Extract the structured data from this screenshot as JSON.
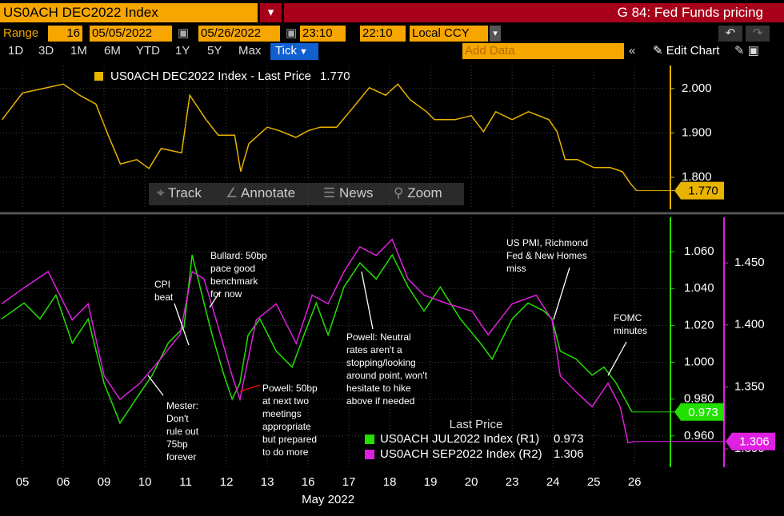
{
  "header": {
    "ticker": "US0ACH DEC2022 Index",
    "function": "G 84: Fed Funds pricing"
  },
  "controls": {
    "range_label": "Range",
    "range_value": "16",
    "start_date": "05/05/2022",
    "end_date": "05/26/2022",
    "start_time": "23:10",
    "end_time": "22:10",
    "currency": "Local CCY"
  },
  "periods": [
    "1D",
    "3D",
    "1M",
    "6M",
    "YTD",
    "1Y",
    "5Y",
    "Max",
    "Tick"
  ],
  "add_data": "Add Data",
  "edit_chart": "Edit Chart",
  "chart_tools": [
    "Track",
    "Annotate",
    "News",
    "Zoom"
  ],
  "chart_data": [
    {
      "type": "line",
      "xlim": [
        -0.55,
        15.82
      ],
      "ylim": [
        1.728,
        2.052
      ],
      "yticks": [
        {
          "value": 1.8,
          "label": "1.800"
        },
        {
          "value": 1.9,
          "label": "1.900"
        },
        {
          "value": 2,
          "label": "2.000"
        }
      ],
      "grid": true,
      "series": [
        {
          "name": "US0ACH DEC2022 Index - Last Price",
          "last_label": "1.770",
          "color": "#e8b400",
          "x": [
            -0.5,
            0,
            0.5,
            1,
            1.4,
            1.8,
            2.1,
            2.4,
            2.8,
            3.1,
            3.4,
            3.9,
            4.1,
            4.5,
            4.8,
            5.2,
            5.35,
            5.55,
            6,
            6.3,
            6.7,
            7,
            7.3,
            7.7,
            8.1,
            8.5,
            8.9,
            9.2,
            9.5,
            9.9,
            10.1,
            10.6,
            11,
            11.3,
            11.6,
            12,
            12.4,
            12.9,
            13.1,
            13.3,
            13.6,
            14,
            14.4,
            14.7,
            14.9,
            15.05
          ],
          "values": [
            1.93,
            1.99,
            2.0,
            2.01,
            1.985,
            1.965,
            1.895,
            1.83,
            1.84,
            1.82,
            1.865,
            1.855,
            1.985,
            1.93,
            1.895,
            1.895,
            1.813,
            1.876,
            1.913,
            1.905,
            1.89,
            1.905,
            1.913,
            1.913,
            1.957,
            2.002,
            1.985,
            2.01,
            1.975,
            1.948,
            1.93,
            1.93,
            1.939,
            1.903,
            1.948,
            1.93,
            1.948,
            1.93,
            1.903,
            1.84,
            1.84,
            1.822,
            1.822,
            1.813,
            1.786,
            1.77
          ]
        }
      ]
    },
    {
      "type": "line",
      "xlim": [
        -0.55,
        15.82
      ],
      "ylim": [
        0.943,
        1.0787
      ],
      "y2lim": [
        1.2852,
        1.4868
      ],
      "yticks": [
        {
          "value": 0.96,
          "label": "0.960"
        },
        {
          "value": 0.98,
          "label": "0.980"
        },
        {
          "value": 1,
          "label": "1.000"
        },
        {
          "value": 1.02,
          "label": "1.020"
        },
        {
          "value": 1.04,
          "label": "1.040"
        },
        {
          "value": 1.06,
          "label": "1.060"
        }
      ],
      "y2ticks": [
        {
          "value": 1.3,
          "label": "1.300"
        },
        {
          "value": 1.35,
          "label": "1.350"
        },
        {
          "value": 1.4,
          "label": "1.400"
        },
        {
          "value": 1.45,
          "label": "1.450"
        }
      ],
      "xticks": [
        {
          "value": 0,
          "label": "05"
        },
        {
          "value": 1,
          "label": "06"
        },
        {
          "value": 2,
          "label": "09"
        },
        {
          "value": 3,
          "label": "10"
        },
        {
          "value": 4,
          "label": "11"
        },
        {
          "value": 5,
          "label": "12"
        },
        {
          "value": 6,
          "label": "13"
        },
        {
          "value": 7,
          "label": "16"
        },
        {
          "value": 8,
          "label": "17"
        },
        {
          "value": 9,
          "label": "18"
        },
        {
          "value": 10,
          "label": "19"
        },
        {
          "value": 11,
          "label": "20"
        },
        {
          "value": 12,
          "label": "23"
        },
        {
          "value": 13,
          "label": "24"
        },
        {
          "value": 14,
          "label": "25"
        },
        {
          "value": 15,
          "label": "26"
        }
      ],
      "xlabel": "May 2022",
      "grid": true,
      "legend_title": "Last Price",
      "series": [
        {
          "name": "US0ACH JUL2022 Index  (R1)",
          "last_label": "0.973",
          "color": "#22e000",
          "axis": "y",
          "x": [
            -0.51,
            0.04,
            0.43,
            0.82,
            1.22,
            1.61,
            2,
            2.39,
            2.78,
            3.18,
            3.57,
            3.96,
            4.16,
            4.45,
            4.65,
            4.94,
            5.14,
            5.33,
            5.53,
            5.82,
            6.22,
            6.61,
            6.9,
            7.2,
            7.49,
            7.88,
            8.27,
            8.67,
            9.06,
            9.45,
            9.84,
            10.24,
            10.73,
            11.22,
            11.51,
            12,
            12.39,
            12.78,
            12.98,
            13.18,
            13.57,
            13.96,
            14.25,
            14.55,
            14.94
          ],
          "values": [
            1.0235,
            1.0322,
            1.0235,
            1.0365,
            1.0104,
            1.0235,
            0.9887,
            0.967,
            0.98,
            0.993,
            1.0104,
            1.0191,
            1.0583,
            1.0322,
            1.0148,
            0.993,
            0.98,
            0.9887,
            1.0148,
            1.0235,
            1.0061,
            0.9974,
            1.0148,
            1.0322,
            1.0148,
            1.0409,
            1.0539,
            1.0452,
            1.0583,
            1.0409,
            1.0278,
            1.0409,
            1.0235,
            1.0104,
            1.0017,
            1.0235,
            1.0322,
            1.0278,
            1.0235,
            1.0061,
            1.0017,
            0.993,
            0.9974,
            0.9887,
            0.973
          ]
        },
        {
          "name": "US0ACH SEP2022 Index  (R2)",
          "last_label": "1.306",
          "color": "#e020e0",
          "axis": "y2",
          "x": [
            -0.51,
            0.04,
            0.63,
            1.22,
            1.61,
            2,
            2.39,
            2.88,
            3.37,
            3.86,
            4.16,
            4.45,
            4.75,
            5.14,
            5.33,
            5.73,
            6.22,
            6.71,
            7.1,
            7.49,
            7.88,
            8.27,
            8.67,
            9.06,
            9.45,
            9.84,
            10.43,
            11.02,
            11.41,
            12,
            12.59,
            12.98,
            13.18,
            13.57,
            13.96,
            14.35,
            14.65,
            14.84,
            15
          ],
          "values": [
            1.417,
            1.43,
            1.443,
            1.404,
            1.417,
            1.359,
            1.34,
            1.353,
            1.372,
            1.392,
            1.443,
            1.437,
            1.404,
            1.359,
            1.34,
            1.404,
            1.417,
            1.385,
            1.424,
            1.417,
            1.443,
            1.463,
            1.456,
            1.469,
            1.437,
            1.424,
            1.417,
            1.411,
            1.392,
            1.417,
            1.424,
            1.404,
            1.359,
            1.346,
            1.334,
            1.353,
            1.334,
            1.305,
            1.306
          ]
        }
      ],
      "annotations": [
        "CPI\nbeat",
        "Bullard: 50bp\npace good\nbenchmark\nfor now",
        "Mester:\nDon't\nrule out\n75bp\nforever",
        "Powell: 50bp\nat next two\nmeetings\nappropriate\nbut prepared\nto do more",
        "Powell: Neutral\nrates aren't a\nstopping/looking\naround point, won't\nhesitate to hike\nabove if needed",
        "US PMI, Richmond\nFed & New Homes\nmiss",
        "FOMC\nminutes"
      ]
    }
  ]
}
